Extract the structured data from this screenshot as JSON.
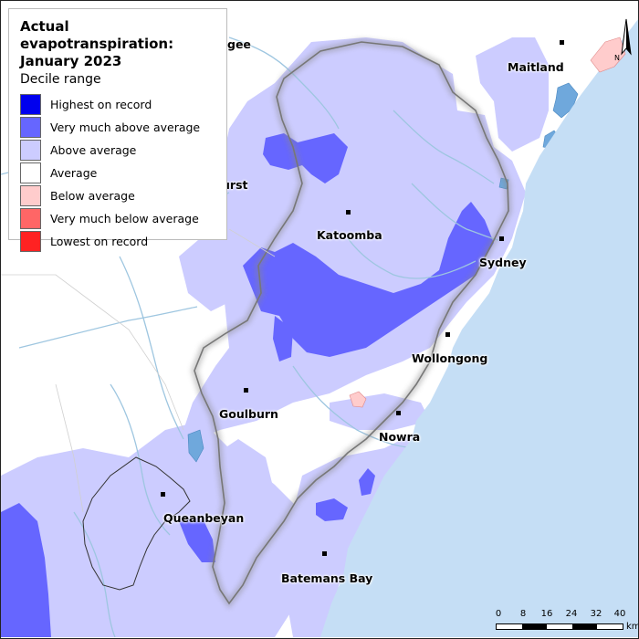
{
  "legend": {
    "title_line1": "Actual evapotranspiration:",
    "title_line2": "January 2023",
    "subtitle": "Decile range",
    "items": [
      {
        "label": "Highest on record",
        "color": "#0000ee"
      },
      {
        "label": "Very much above average",
        "color": "#6666ff"
      },
      {
        "label": "Above average",
        "color": "#ccccff"
      },
      {
        "label": "Average",
        "color": "#ffffff"
      },
      {
        "label": "Below average",
        "color": "#ffcccc"
      },
      {
        "label": "Very much below average",
        "color": "#ff6666"
      },
      {
        "label": "Lowest on record",
        "color": "#ff2222"
      }
    ]
  },
  "towns": {
    "maitland": "Maitland",
    "katoomba": "Katoomba",
    "sydney": "Sydney",
    "wollongong": "Wollongong",
    "goulburn": "Goulburn",
    "nowra": "Nowra",
    "queanbeyan": "Queanbeyan",
    "batemans_bay": "Batemans Bay",
    "bathurst_partial": "urst",
    "mudgee_partial": "gee"
  },
  "scale": {
    "ticks": [
      "0",
      "8",
      "16",
      "24",
      "32",
      "40"
    ],
    "units": "km"
  },
  "north_label": "N",
  "colors": {
    "ocean": "#c5def5",
    "land": "#ffffff",
    "above_average": "#ccccff",
    "very_much_above_average": "#6666ff",
    "below_average": "#ffcccc",
    "rivers": "#9ec6e0",
    "lakes": "#6fa8dc"
  }
}
